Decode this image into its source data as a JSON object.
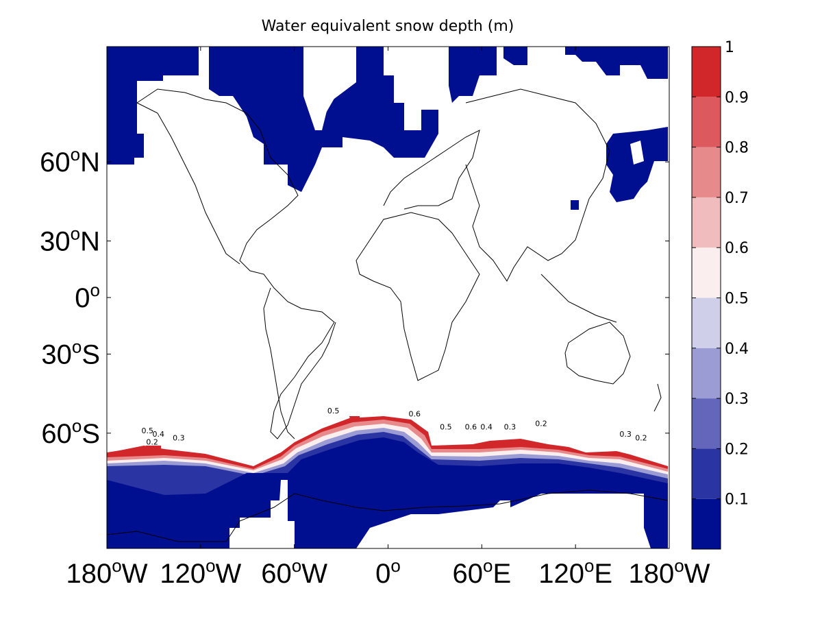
{
  "chart_data": {
    "type": "heatmap",
    "title": "Water equivalent snow depth (m)",
    "projection": "mercator",
    "xlim": [
      -180,
      180
    ],
    "ylim": [
      -80,
      80
    ],
    "x_ticks": [
      {
        "value": -180,
        "num": "180",
        "hemi": "W"
      },
      {
        "value": -120,
        "num": "120",
        "hemi": "W"
      },
      {
        "value": -60,
        "num": "60",
        "hemi": "W"
      },
      {
        "value": 0,
        "num": "0",
        "hemi": ""
      },
      {
        "value": 60,
        "num": "60",
        "hemi": "E"
      },
      {
        "value": 120,
        "num": "120",
        "hemi": "E"
      },
      {
        "value": 180,
        "num": "180",
        "hemi": "W"
      }
    ],
    "y_ticks": [
      {
        "value": 60,
        "num": "60",
        "hemi": "N"
      },
      {
        "value": 30,
        "num": "30",
        "hemi": "N"
      },
      {
        "value": 0,
        "num": "0",
        "hemi": ""
      },
      {
        "value": -30,
        "num": "30",
        "hemi": "S"
      },
      {
        "value": -60,
        "num": "60",
        "hemi": "S"
      }
    ],
    "degree_symbol": "o",
    "colorbar": {
      "levels": [
        0,
        0.1,
        0.2,
        0.3,
        0.4,
        0.5,
        0.6,
        0.7,
        0.8,
        0.9,
        1
      ],
      "tick_labels": [
        "0.1",
        "0.2",
        "0.3",
        "0.4",
        "0.5",
        "0.6",
        "0.7",
        "0.8",
        "0.9",
        "1"
      ],
      "colors": [
        "#000f8f",
        "#2b34a3",
        "#6366bb",
        "#9b9cd4",
        "#cfcfea",
        "#fbeeee",
        "#f0bcbd",
        "#e68a8c",
        "#dc5a5d",
        "#d1262a"
      ]
    },
    "snow_regions": [
      {
        "name": "arctic-north-america",
        "level": 0.05,
        "lon": [
          -180,
          -20
        ],
        "lat": [
          55,
          80
        ]
      },
      {
        "name": "arctic-eurasia",
        "level": 0.05,
        "lon": [
          -20,
          180
        ],
        "lat": [
          62,
          80
        ]
      },
      {
        "name": "sea-of-okhotsk",
        "level": 0.05,
        "lon": [
          138,
          160
        ],
        "lat": [
          44,
          62
        ]
      },
      {
        "name": "southern-ocean-ice",
        "level": 0.05,
        "lon": [
          -180,
          180
        ],
        "lat": [
          -80,
          -60
        ]
      },
      {
        "name": "weddell-ridge-high",
        "level": 0.95,
        "lon": [
          -45,
          25
        ],
        "lat": [
          -58,
          -52
        ]
      }
    ],
    "contour_labels": [
      {
        "text": "0.5",
        "lon": -154,
        "lat": -60
      },
      {
        "text": "0.4",
        "lon": -147,
        "lat": -61
      },
      {
        "text": "0.2",
        "lon": -151,
        "lat": -63
      },
      {
        "text": "0.3",
        "lon": -134,
        "lat": -62
      },
      {
        "text": "0.5",
        "lon": -35,
        "lat": -54
      },
      {
        "text": "0.6",
        "lon": 17,
        "lat": -55
      },
      {
        "text": "0.5",
        "lon": 37,
        "lat": -59
      },
      {
        "text": "0.6",
        "lon": 53,
        "lat": -59
      },
      {
        "text": "0.4",
        "lon": 63,
        "lat": -59
      },
      {
        "text": "0.3",
        "lon": 78,
        "lat": -59
      },
      {
        "text": "0.2",
        "lon": 98,
        "lat": -58
      },
      {
        "text": "0.3",
        "lon": 152,
        "lat": -61
      },
      {
        "text": "0.2",
        "lon": 162,
        "lat": -62
      }
    ]
  }
}
